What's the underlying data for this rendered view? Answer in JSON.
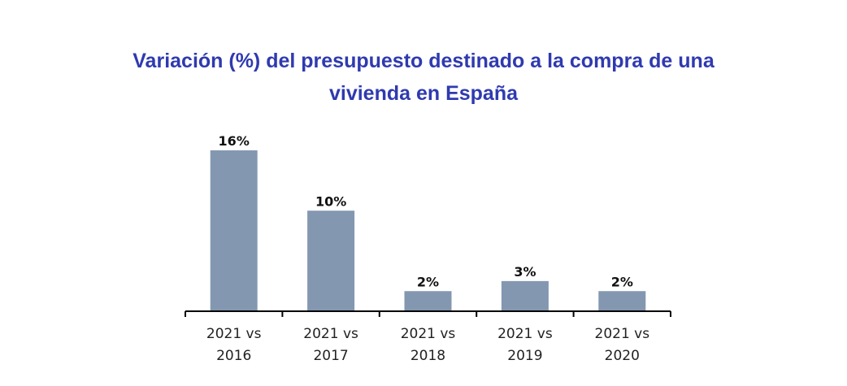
{
  "chart_data": {
    "type": "bar",
    "title": "Variación (%) del presupuesto destinado a la compra de una vivienda en España",
    "title_lines": [
      "Variación (%) del presupuesto destinado a la compra de una",
      "vivienda en España"
    ],
    "categories": [
      [
        "2021 vs",
        "2016"
      ],
      [
        "2021 vs",
        "2017"
      ],
      [
        "2021 vs",
        "2018"
      ],
      [
        "2021 vs",
        "2019"
      ],
      [
        "2021 vs",
        "2020"
      ]
    ],
    "values": [
      16,
      10,
      2,
      3,
      2
    ],
    "data_labels": [
      "16%",
      "10%",
      "2%",
      "3%",
      "2%"
    ],
    "ylim": [
      0,
      16
    ],
    "grid": false,
    "xlabel": "",
    "ylabel": "",
    "colors": {
      "bar": "#8497b0",
      "title": "#2f3ab0",
      "axis": "#000000"
    }
  }
}
